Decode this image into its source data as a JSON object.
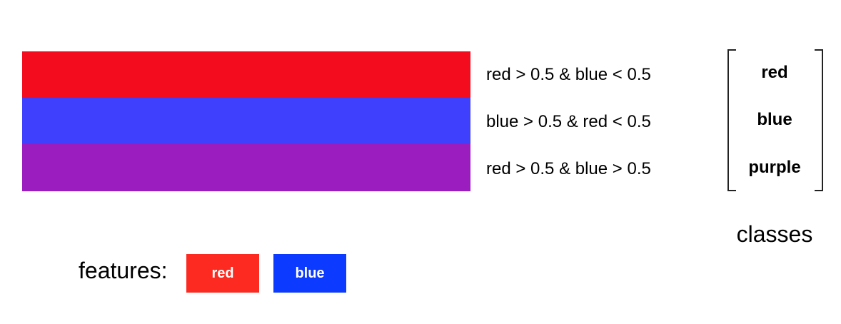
{
  "bands": [
    {
      "color": "#f20c1e",
      "rule": "red > 0.5 & blue < 0.5"
    },
    {
      "color": "#3f3ffe",
      "rule": "blue > 0.5 & red < 0.5"
    },
    {
      "color": "#9b1dbf",
      "rule": "red > 0.5 & blue > 0.5"
    }
  ],
  "classes": {
    "items": [
      "red",
      "blue",
      "purple"
    ],
    "caption": "classes"
  },
  "features": {
    "label": "features:",
    "chips": [
      {
        "label": "red",
        "color": "#fc2a20"
      },
      {
        "label": "blue",
        "color": "#0c3aff"
      }
    ]
  }
}
